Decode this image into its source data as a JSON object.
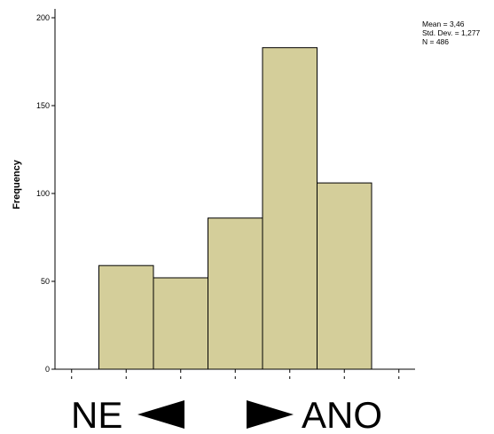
{
  "chart_data": {
    "type": "bar",
    "ylabel": "Frequency",
    "xlabel": "",
    "ylim": [
      0,
      200
    ],
    "yticks": [
      0,
      50,
      100,
      150,
      200
    ],
    "values": [
      0,
      59,
      52,
      86,
      183,
      106,
      0
    ],
    "bar_color": "#d4ce9a",
    "grid": false,
    "stats": [
      "Mean = 3,46",
      "Std. Dev. = 1,277",
      "N = 486"
    ],
    "legend_position": "top-right"
  },
  "annotation": {
    "left_text": "NE",
    "right_text": "ANO"
  }
}
